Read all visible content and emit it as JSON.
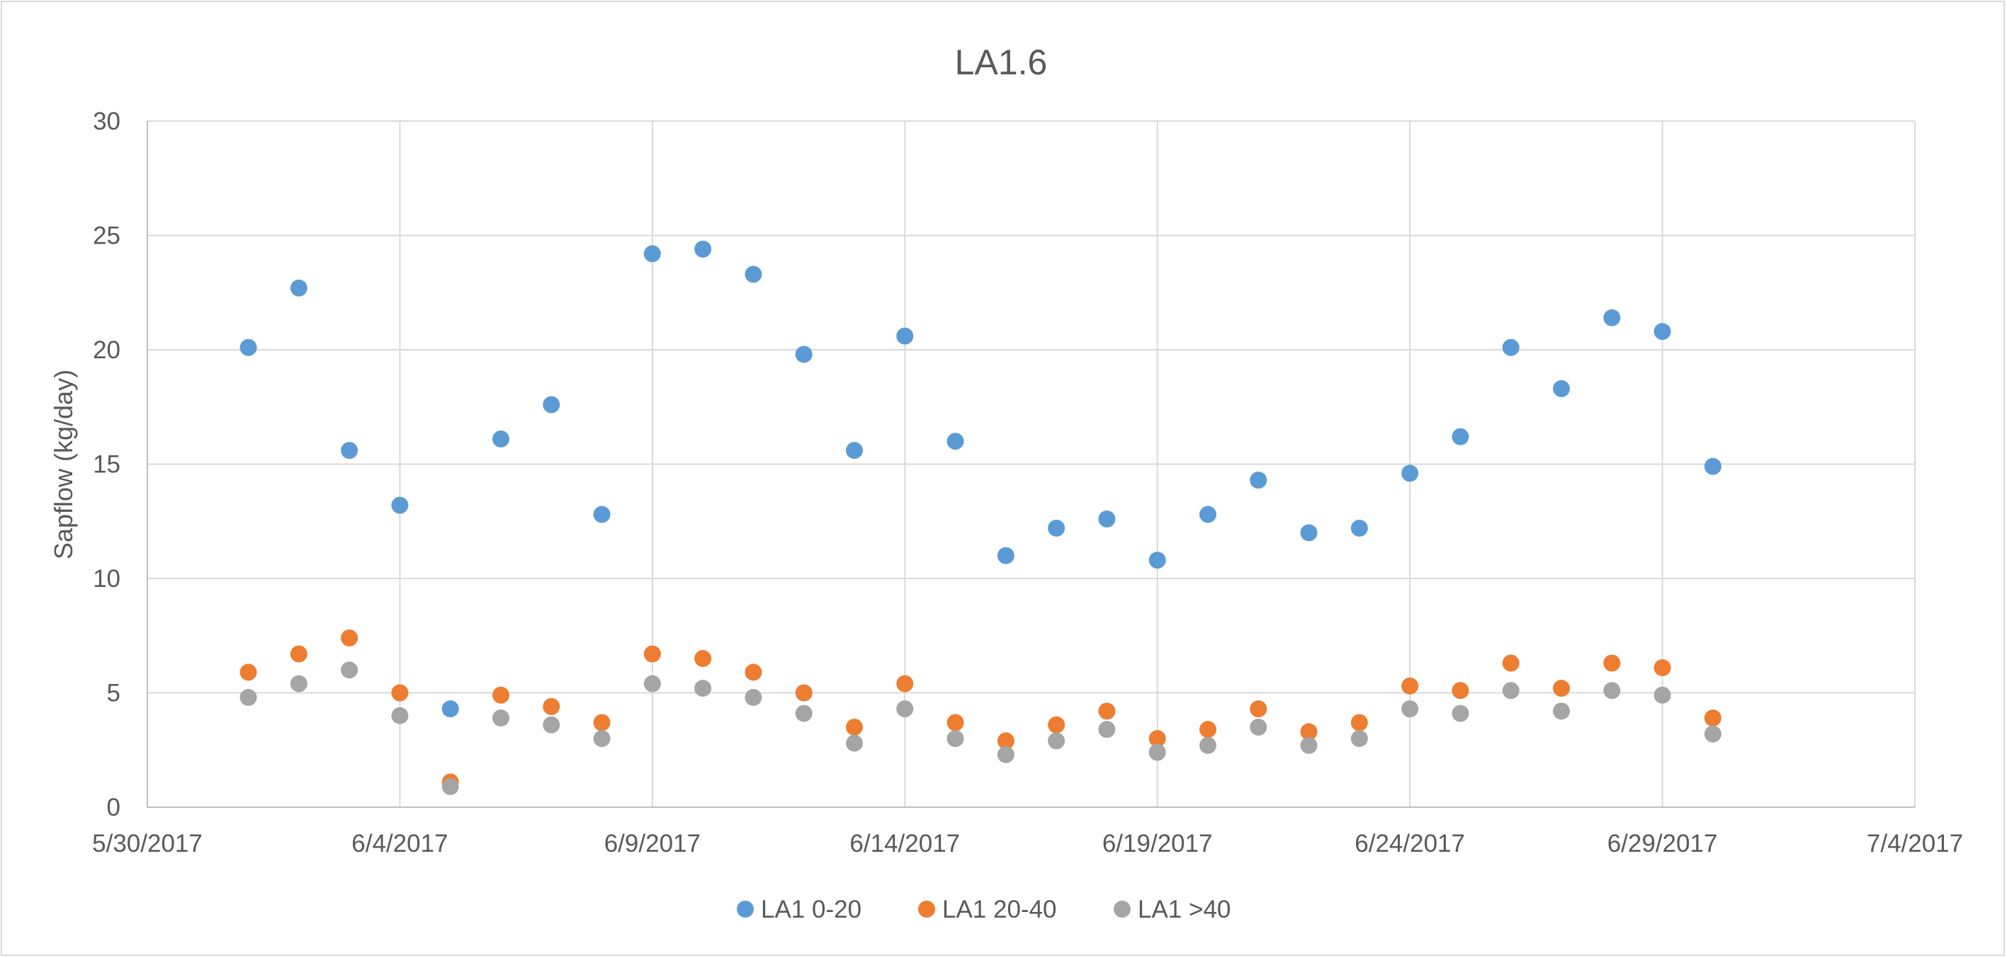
{
  "chart_data": {
    "type": "scatter",
    "title": "LA1.6",
    "ylabel": "Sapflow (kg/day)",
    "xlabel": "",
    "x_tick_labels": [
      "5/30/2017",
      "6/4/2017",
      "6/9/2017",
      "6/14/2017",
      "6/19/2017",
      "6/24/2017",
      "6/29/2017",
      "7/4/2017"
    ],
    "y_tick_labels": [
      "0",
      "5",
      "10",
      "15",
      "20",
      "25",
      "30"
    ],
    "xlim": [
      "2017-05-30",
      "2017-07-04"
    ],
    "ylim": [
      0,
      30
    ],
    "grid": true,
    "legend_position": "bottom",
    "x": [
      "2017-06-01",
      "2017-06-02",
      "2017-06-03",
      "2017-06-04",
      "2017-06-05",
      "2017-06-06",
      "2017-06-07",
      "2017-06-08",
      "2017-06-09",
      "2017-06-10",
      "2017-06-11",
      "2017-06-12",
      "2017-06-13",
      "2017-06-14",
      "2017-06-15",
      "2017-06-16",
      "2017-06-17",
      "2017-06-18",
      "2017-06-19",
      "2017-06-20",
      "2017-06-21",
      "2017-06-22",
      "2017-06-23",
      "2017-06-24",
      "2017-06-25",
      "2017-06-26",
      "2017-06-27",
      "2017-06-28",
      "2017-06-29",
      "2017-06-30"
    ],
    "series": [
      {
        "name": "LA1 0-20",
        "color": "#5b9bd5",
        "values": [
          20.1,
          22.7,
          15.6,
          13.2,
          4.3,
          16.1,
          17.6,
          12.8,
          24.2,
          24.4,
          23.3,
          19.8,
          15.6,
          20.6,
          16.0,
          11.0,
          12.2,
          12.6,
          10.8,
          12.8,
          14.3,
          12.0,
          12.2,
          14.6,
          16.2,
          20.1,
          18.3,
          21.4,
          20.8,
          14.9
        ]
      },
      {
        "name": "LA1 20-40",
        "color": "#ed7d31",
        "values": [
          5.9,
          6.7,
          7.4,
          5.0,
          1.1,
          4.9,
          4.4,
          3.7,
          6.7,
          6.5,
          5.9,
          5.0,
          3.5,
          5.4,
          3.7,
          2.9,
          3.6,
          4.2,
          3.0,
          3.4,
          4.3,
          3.3,
          3.7,
          5.3,
          5.1,
          6.3,
          5.2,
          6.3,
          6.1,
          3.9
        ]
      },
      {
        "name": "LA1 >40",
        "color": "#a5a5a5",
        "values": [
          4.8,
          5.4,
          6.0,
          4.0,
          0.9,
          3.9,
          3.6,
          3.0,
          5.4,
          5.2,
          4.8,
          4.1,
          2.8,
          4.3,
          3.0,
          2.3,
          2.9,
          3.4,
          2.4,
          2.7,
          3.5,
          2.7,
          3.0,
          4.3,
          4.1,
          5.1,
          4.2,
          5.1,
          4.9,
          3.2
        ]
      }
    ]
  }
}
